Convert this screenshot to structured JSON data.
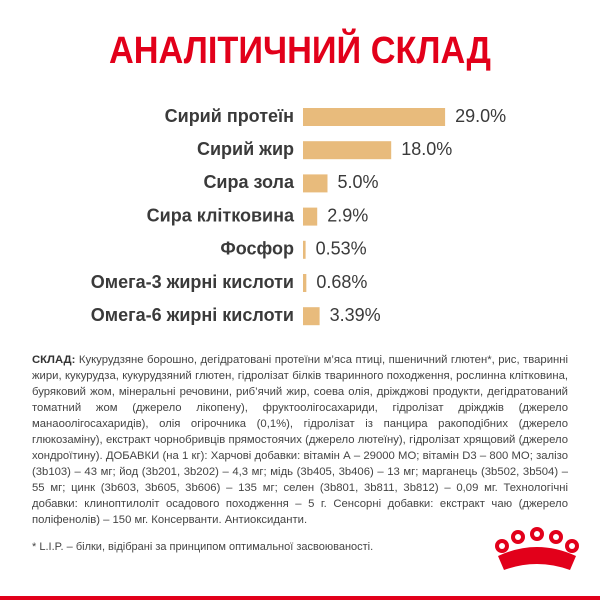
{
  "chart_data": {
    "type": "bar",
    "orientation": "horizontal",
    "title": "АНАЛІТИЧНИЙ СКЛАД",
    "categories": [
      "Сирий протеїн",
      "Сирий жир",
      "Сира зола",
      "Сира клітковина",
      "Фосфор",
      "Омега-3 жирні кислоти",
      "Омега-6 жирні кислоти"
    ],
    "values": [
      29.0,
      18.0,
      5.0,
      2.9,
      0.53,
      0.68,
      3.39
    ],
    "value_labels": [
      "29.0%",
      "18.0%",
      "5.0%",
      "2.9%",
      "0.53%",
      "0.68%",
      "3.39%"
    ],
    "color": "#e8bb7c"
  },
  "composition": {
    "label": "СКЛАД:",
    "text": "Кукурудзяне борошно, дегідратовані протеїни м’яса птиці, пшеничний глютен*, рис, тваринні жири, кукурудза, кукурудзяний глютен, гідролізат білків тваринного походження, рослинна клітковина, буряковий жом, мінеральні речовини, риб’ячий жир, соева олія, дріжджові продукти, дегідратований томатний жом (джерело лікопену), фруктоолігосахариди, гідролізат дріжджів (джерело манаоолігосахаридів), олія огірочника (0,1%), гідролізат із панцира ракоподібних (джерело глюкозаміну), екстракт чорнобривців прямостоячих (джерело лютеїну), гідролізат хрящовий (джерело хондроїтину). ДОБАВКИ (на 1 кг): Харчові добавки: вітамін А – 29000 МО; вітамін D3 – 800 МО; залізо (3b103) – 43 мг; йод (3b201, 3b202) – 4,3 мг; мідь (3b405, 3b406) – 13 мг; марганець (3b502, 3b504) – 55 мг; цинк (3b603, 3b605, 3b606) – 135 мг; селен (3b801, 3b811, 3b812) – 0,09 мг. Технологічні добавки: клиноптилоліт осадового походження – 5 г. Сенсорні добавки: екстракт чаю (джерело поліфенолів) – 150 мг. Консерванти. Антиоксиданти."
  },
  "footnote": "* L.I.P. – білки, відібрані за принципом оптимальної засвоюваності."
}
